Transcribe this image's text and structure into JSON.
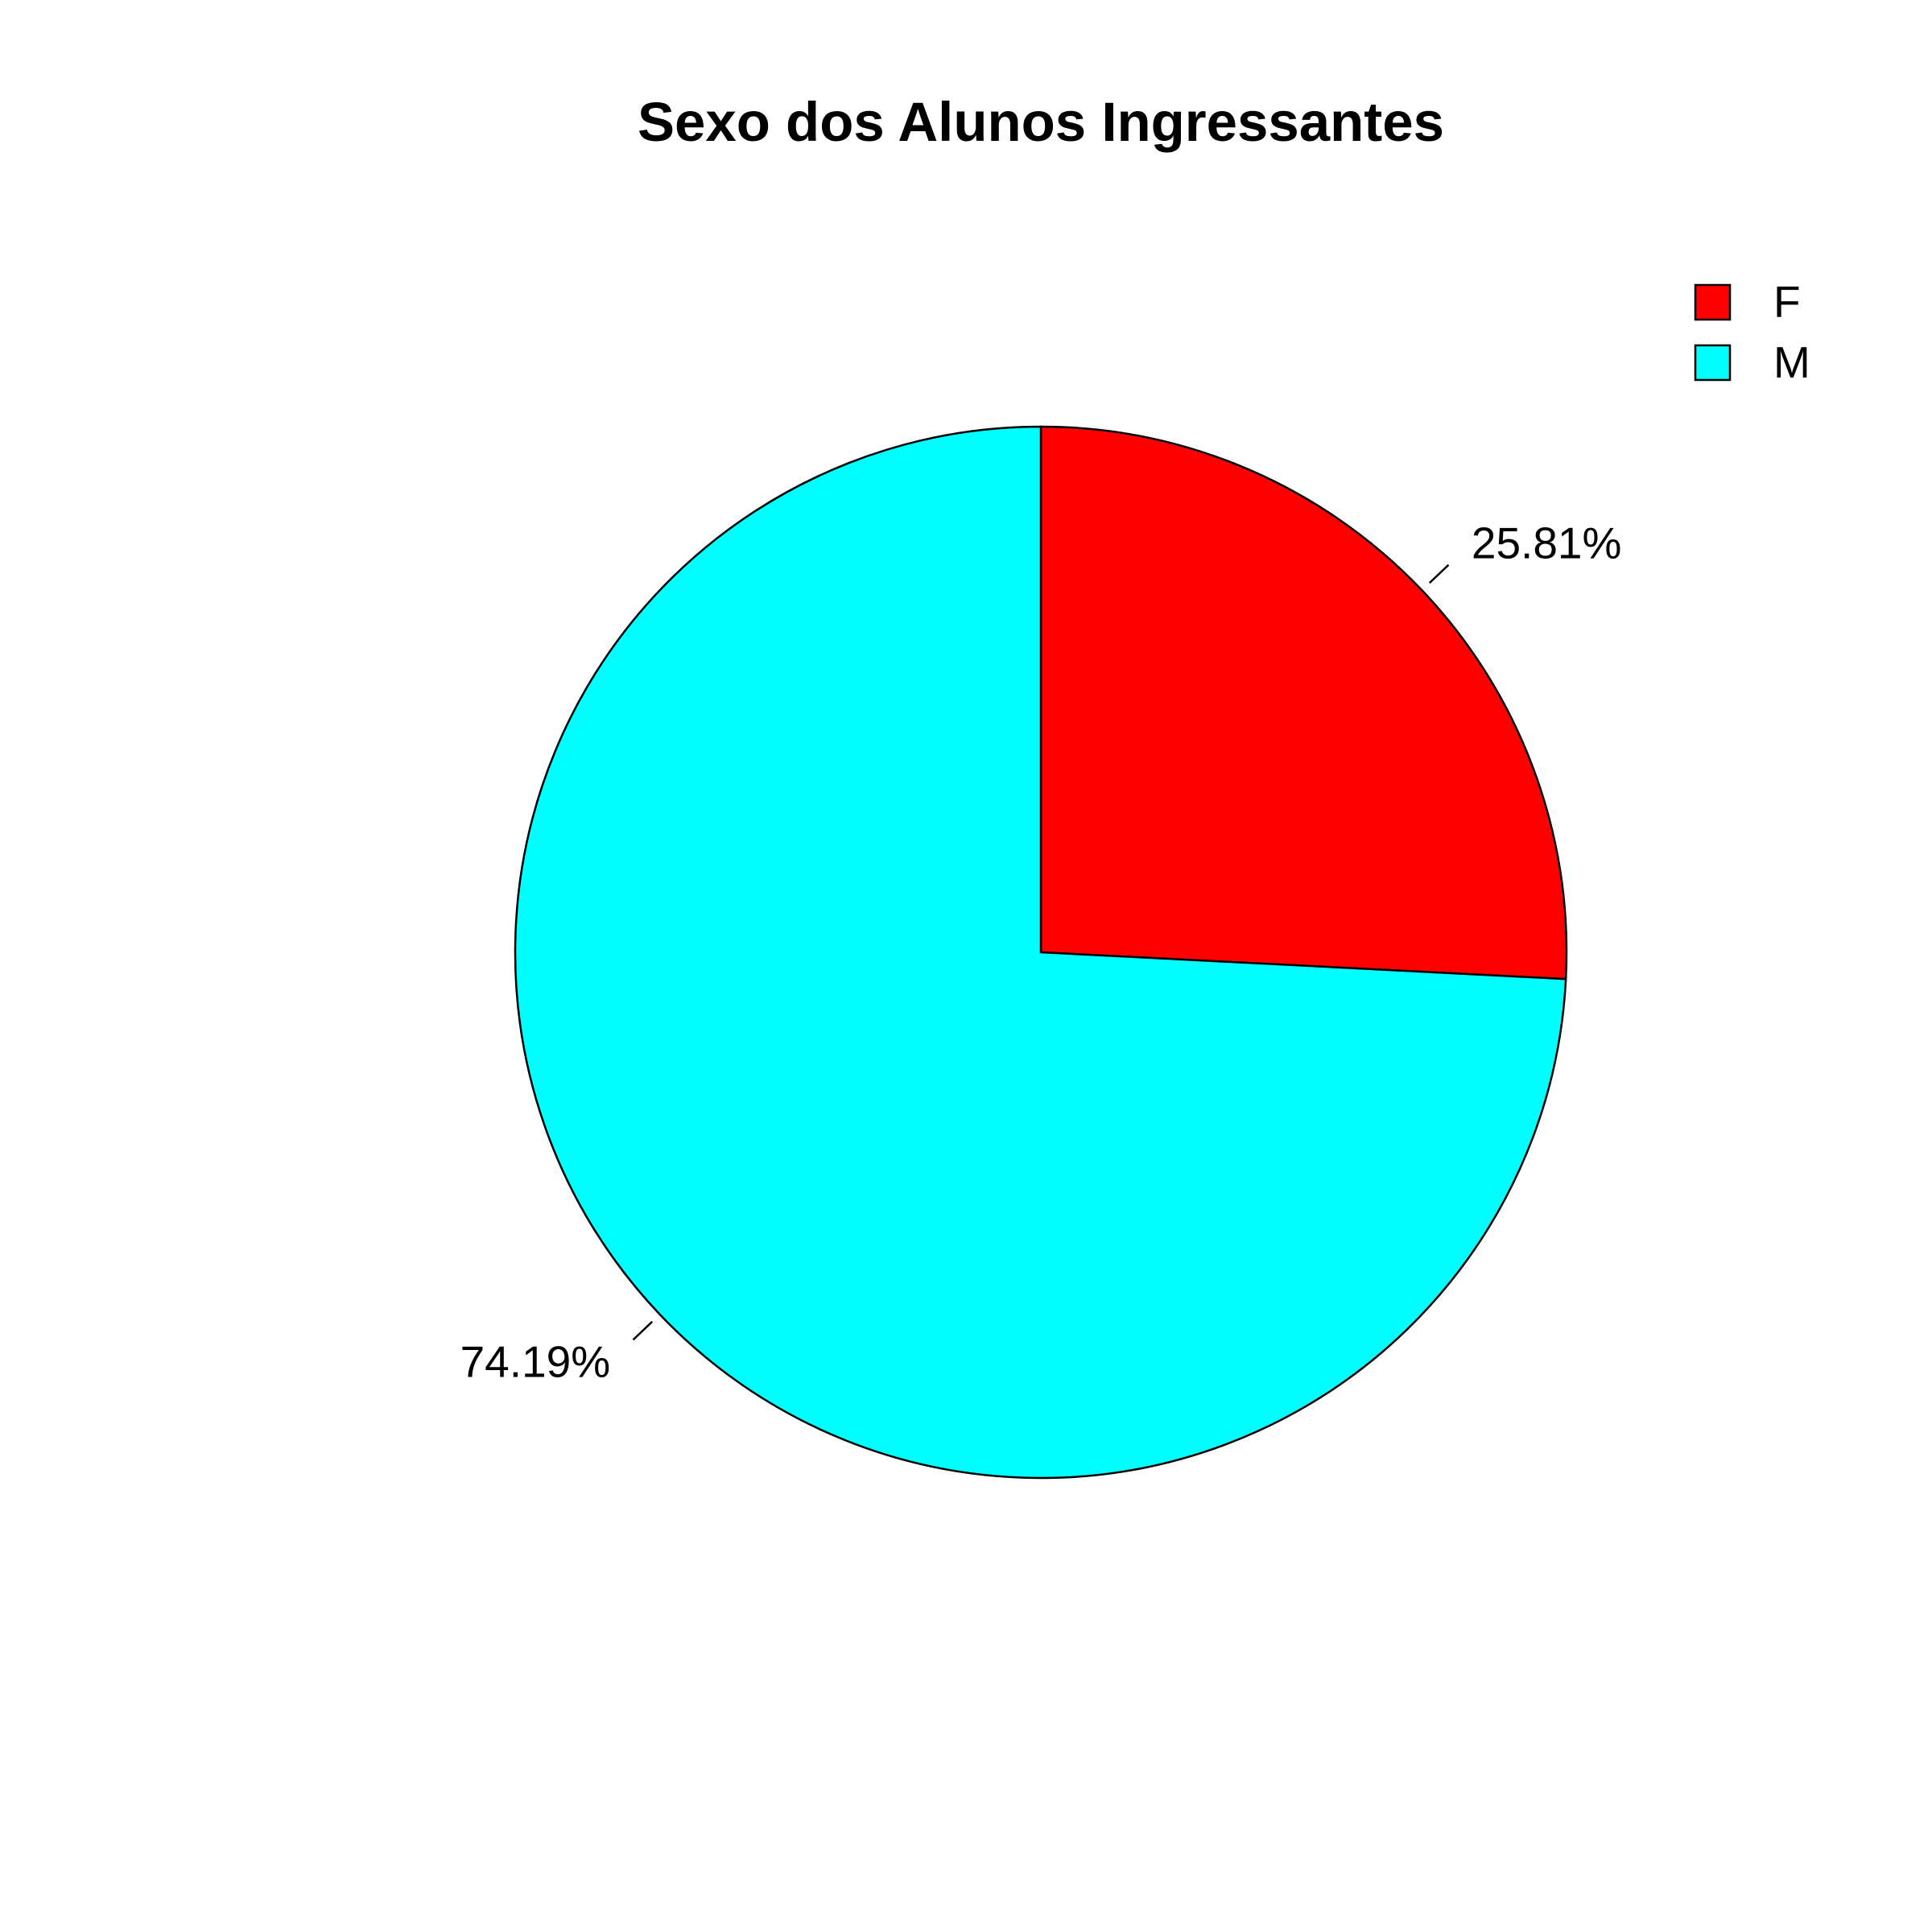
{
  "chart_data": {
    "type": "pie",
    "title": "Sexo dos Alunos Ingressantes",
    "slices": [
      {
        "name": "F",
        "value": 25.81,
        "label": "25.81%",
        "color": "#ff0000"
      },
      {
        "name": "M",
        "value": 74.19,
        "label": "74.19%",
        "color": "#00ffff"
      }
    ],
    "start_angle": "12 o'clock",
    "direction": "clockwise",
    "legend": {
      "position": "top-right",
      "entries": [
        "F",
        "M"
      ]
    }
  }
}
